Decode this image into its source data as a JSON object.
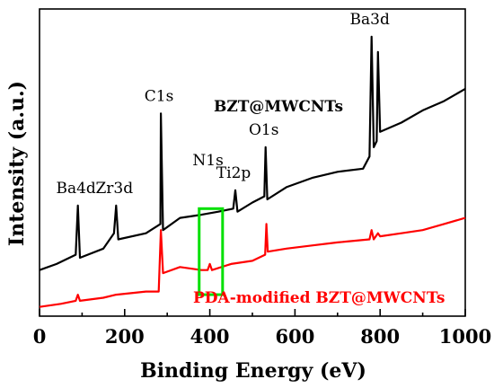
{
  "chart_data": {
    "type": "line",
    "title": "",
    "xlabel": "Binding Energy (eV)",
    "ylabel": "Intensity (a.u.)",
    "xlim": [
      0,
      1000
    ],
    "ylim": [
      0,
      100
    ],
    "xticks": [
      0,
      200,
      400,
      600,
      800,
      1000
    ],
    "y_tick_labels_shown": false,
    "grid": false,
    "legend": "none",
    "series": [
      {
        "name": "BZT@MWCNTs",
        "color": "#000000",
        "x": [
          0,
          40,
          85,
          90,
          95,
          150,
          175,
          180,
          185,
          250,
          284,
          285,
          290,
          330,
          380,
          420,
          455,
          460,
          465,
          500,
          528,
          531,
          535,
          580,
          640,
          700,
          760,
          775,
          780,
          785,
          792,
          795,
          800,
          850,
          900,
          950,
          1000
        ],
        "y": [
          15,
          17,
          20,
          36,
          19,
          22,
          27,
          36,
          25,
          27,
          30,
          66,
          28,
          32,
          33,
          34,
          35,
          41,
          34,
          37,
          39,
          55,
          38,
          42,
          45,
          47,
          48,
          52,
          91,
          55,
          57,
          86,
          60,
          63,
          67,
          70,
          74
        ]
      },
      {
        "name": "PDA-modified BZT@MWCNTs",
        "color": "#ff0000",
        "x": [
          0,
          50,
          85,
          90,
          95,
          150,
          180,
          250,
          280,
          285,
          290,
          330,
          380,
          395,
          400,
          405,
          450,
          500,
          530,
          533,
          536,
          580,
          640,
          700,
          775,
          780,
          785,
          795,
          800,
          850,
          900,
          950,
          1000
        ],
        "y": [
          3,
          4,
          5,
          7,
          5,
          6,
          7,
          8,
          8,
          28,
          14,
          16,
          15,
          15,
          17,
          15,
          17,
          18,
          20,
          30,
          21,
          22,
          23,
          24,
          25,
          28,
          25,
          27,
          26,
          27,
          28,
          30,
          32
        ]
      }
    ],
    "annotations": {
      "peaks": [
        {
          "text": "Ba4d",
          "x": 90,
          "y": 36
        },
        {
          "text": "Zr3d",
          "x": 180,
          "y": 36
        },
        {
          "text": "C1s",
          "x": 285,
          "y": 66
        },
        {
          "text": "N1s",
          "x": 400,
          "y": 45
        },
        {
          "text": "Ti2p",
          "x": 460,
          "y": 41
        },
        {
          "text": "O1s",
          "x": 531,
          "y": 55
        },
        {
          "text": "Ba3d",
          "x": 780,
          "y": 91
        }
      ],
      "series_labels": [
        {
          "text": "BZT@MWCNTs",
          "color": "#000000"
        },
        {
          "text": "PDA-modified BZT@MWCNTs",
          "color": "#ff0000"
        }
      ],
      "highlight_box": {
        "x0": 375,
        "x1": 430,
        "y0": 7,
        "y1": 35,
        "color": "#00e000"
      }
    }
  }
}
